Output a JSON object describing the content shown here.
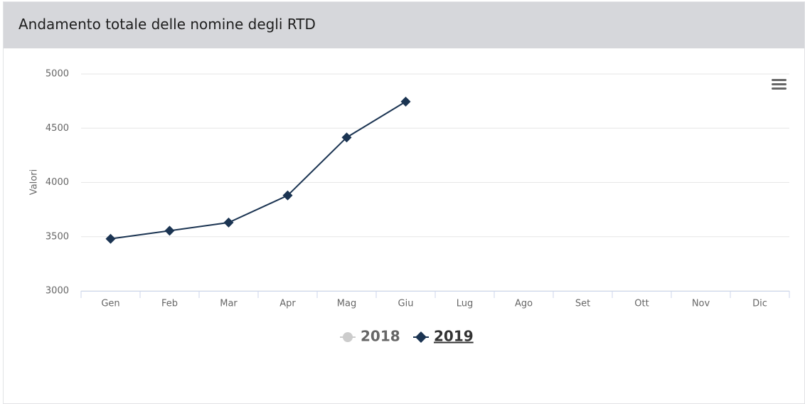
{
  "chart_data": {
    "type": "line",
    "title": "Andamento totale delle nomine degli RTD",
    "y_label": "Valori",
    "categories": [
      "Gen",
      "Feb",
      "Mar",
      "Apr",
      "Mag",
      "Giu",
      "Lug",
      "Ago",
      "Set",
      "Ott",
      "Nov",
      "Dic"
    ],
    "series": [
      {
        "name": "2018",
        "color": "#cccccc",
        "hidden": true,
        "values": [
          null,
          null,
          null,
          null,
          null,
          null,
          null,
          null,
          null,
          null,
          null,
          null
        ]
      },
      {
        "name": "2019",
        "color": "#1b3452",
        "values": [
          3480,
          3555,
          3630,
          3880,
          4415,
          4745,
          null,
          null,
          null,
          null,
          null,
          null
        ]
      }
    ],
    "ylim": [
      3000,
      5000
    ],
    "yticks": [
      3000,
      3500,
      4000,
      4500,
      5000
    ],
    "grid": true
  }
}
